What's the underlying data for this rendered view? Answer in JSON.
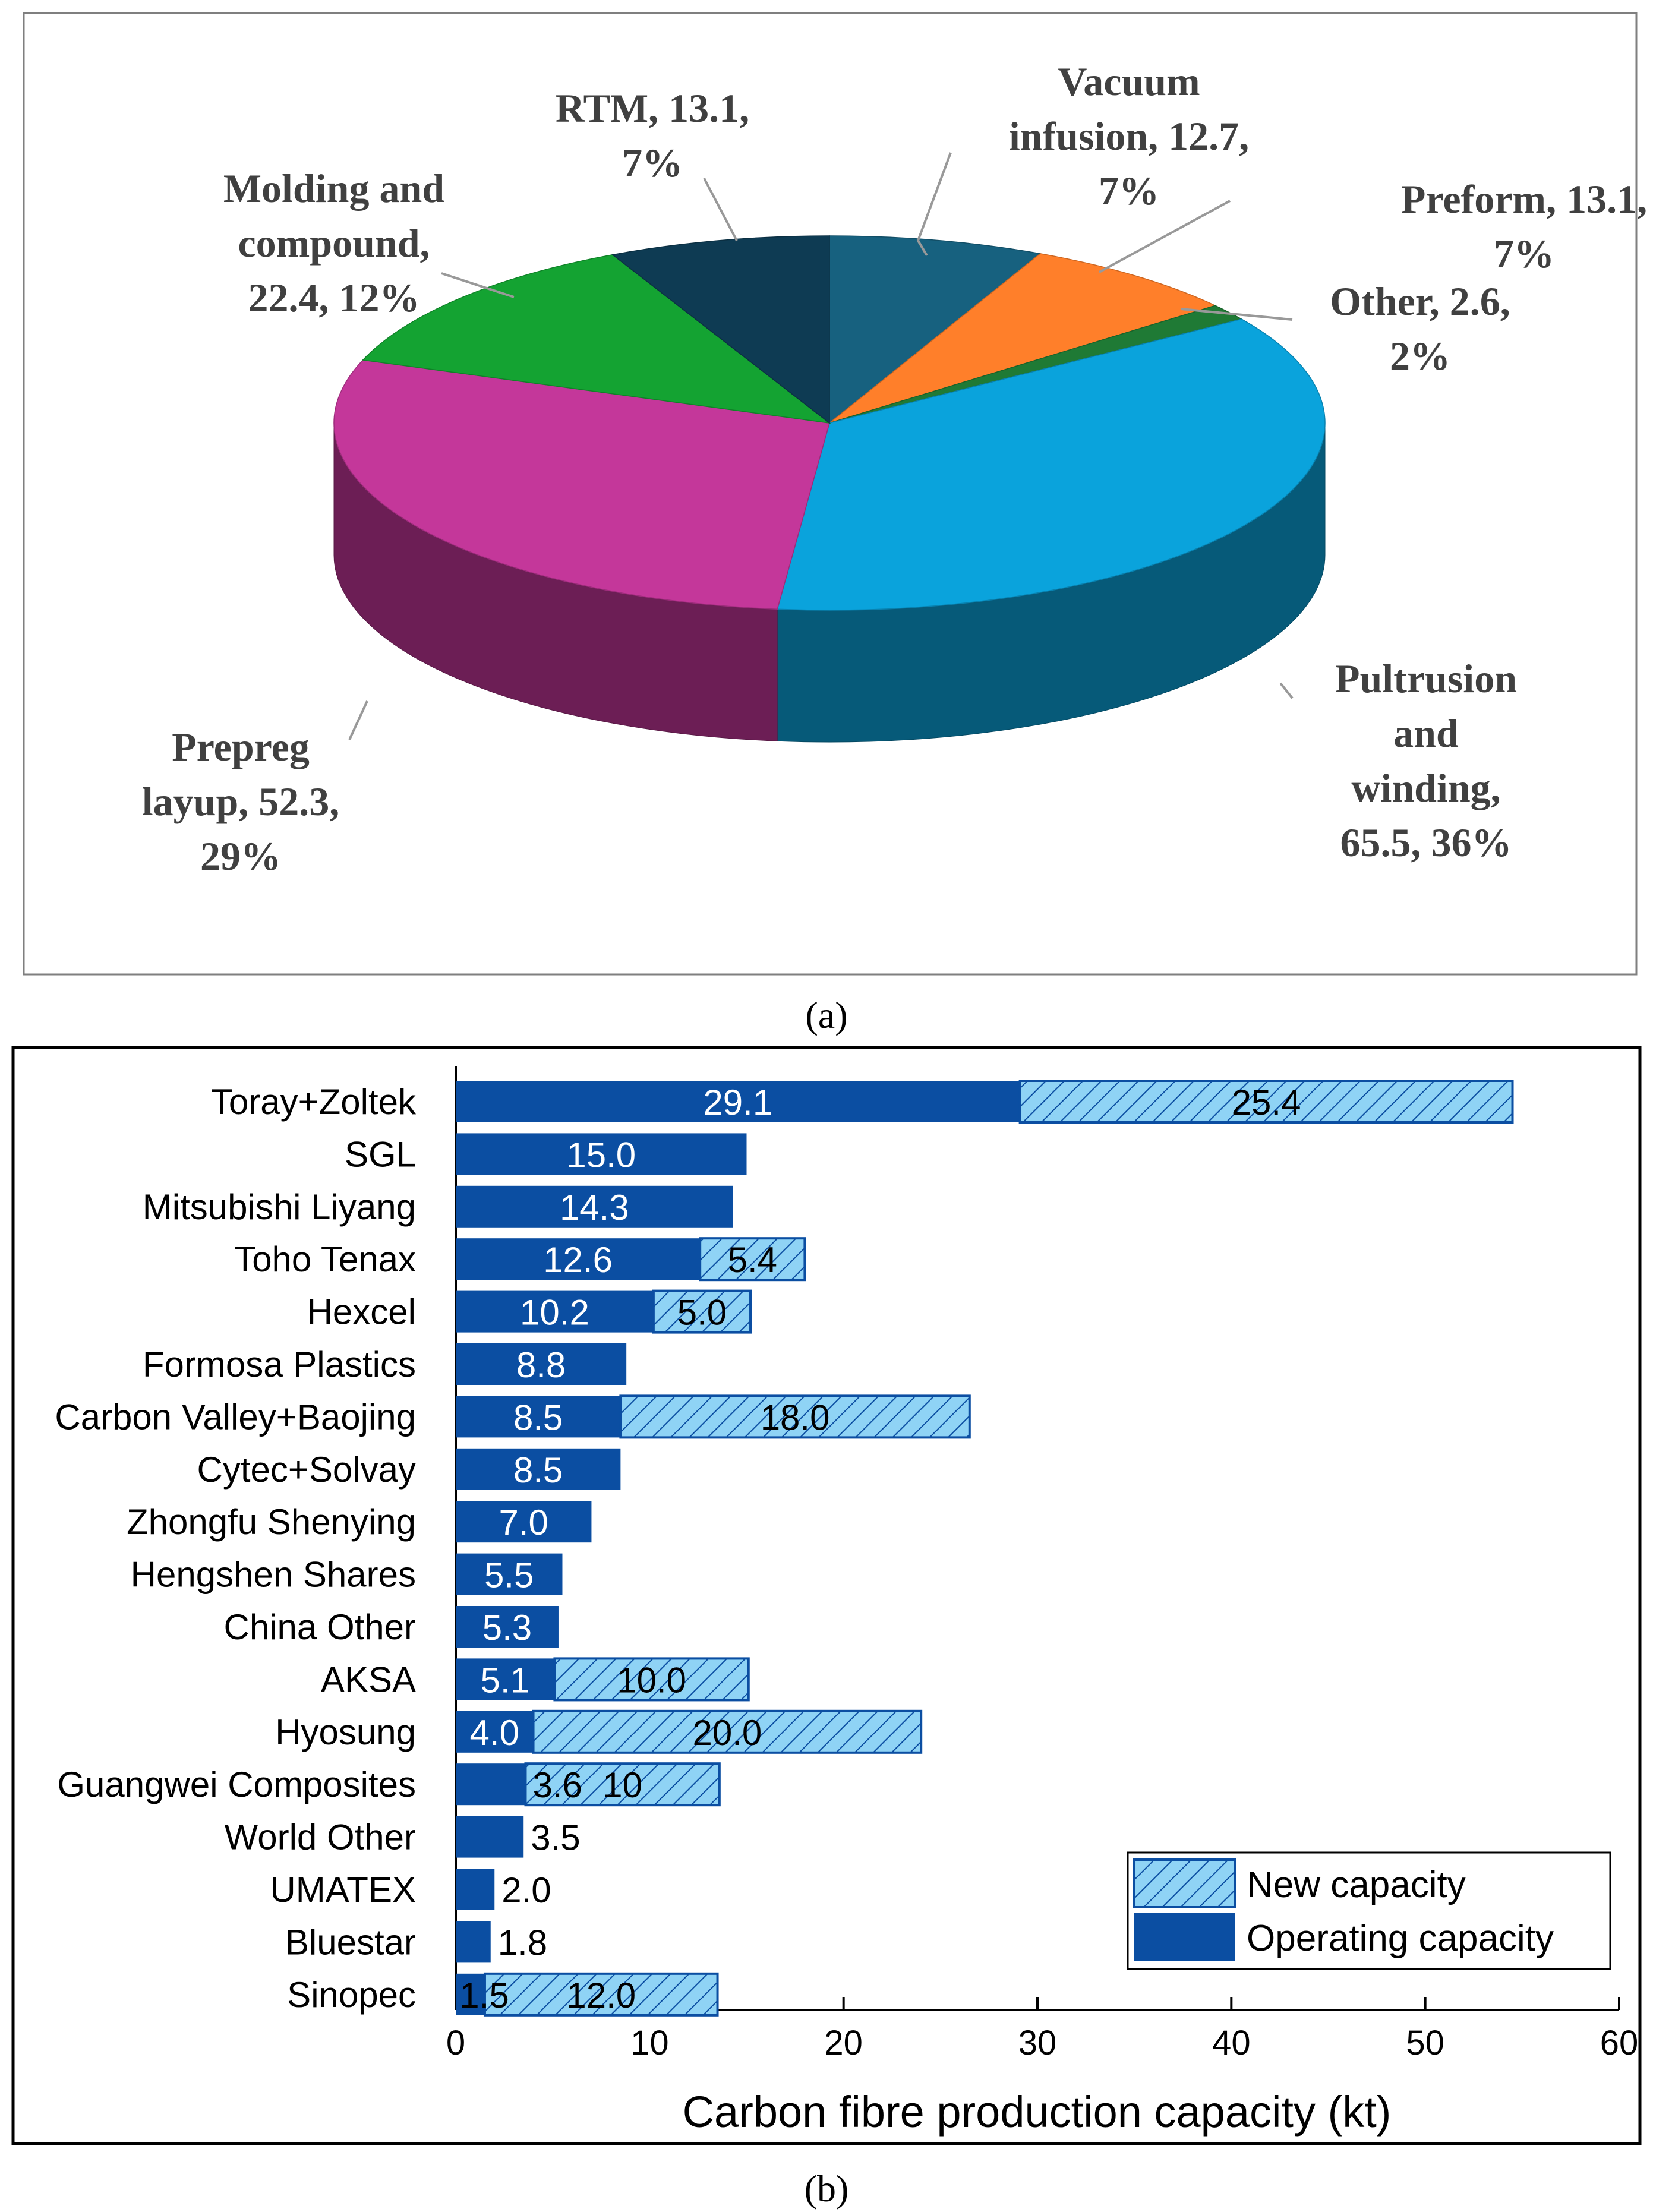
{
  "chart_data": [
    {
      "type": "pie",
      "panel_label": "(a)",
      "slices": [
        {
          "name": "Vacuum infusion",
          "value": 12.7,
          "percent": 7,
          "color": "#17617f",
          "label_lines": [
            "Vacuum",
            "infusion, 12.7,",
            "7%"
          ]
        },
        {
          "name": "Preform",
          "value": 13.1,
          "percent": 7,
          "color": "#ff7f2a",
          "label_lines": [
            "Preform, 13.1,",
            "7%"
          ]
        },
        {
          "name": "Other",
          "value": 2.6,
          "percent": 2,
          "color": "#1f7a35",
          "label_lines": [
            "Other, 2.6,",
            "2%"
          ]
        },
        {
          "name": "Pultrusion and winding",
          "value": 65.5,
          "percent": 36,
          "color": "#0aa3dc",
          "label_lines": [
            "Pultrusion",
            "and",
            "winding,",
            "65.5, 36%"
          ]
        },
        {
          "name": "Prepreg layup",
          "value": 52.3,
          "percent": 29,
          "color": "#c4379a",
          "label_lines": [
            "Prepreg",
            "layup, 52.3,",
            "29%"
          ]
        },
        {
          "name": "Molding and compound",
          "value": 22.4,
          "percent": 12,
          "color": "#14a332",
          "label_lines": [
            "Molding and",
            "compound,",
            "22.4, 12%"
          ]
        },
        {
          "name": "RTM",
          "value": 13.1,
          "percent": 7,
          "color": "#0e3b53",
          "label_lines": [
            "RTM, 13.1,",
            "7%"
          ]
        }
      ]
    },
    {
      "type": "bar",
      "orientation": "horizontal",
      "stacked": true,
      "panel_label": "(b)",
      "xlabel": "Carbon fibre production capacity (kt)",
      "xlim": [
        0,
        60
      ],
      "xticks": [
        "0",
        "10",
        "20",
        "30",
        "40",
        "50",
        "60"
      ],
      "categories": [
        "Toray+Zoltek",
        "SGL",
        "Mitsubishi Liyang",
        "Toho Tenax",
        "Hexcel",
        "Formosa Plastics",
        "Carbon Valley+Baojing",
        "Cytec+Solvay",
        "Zhongfu Shenying",
        "Hengshen Shares",
        "China Other",
        "AKSA",
        "Hyosung",
        "Guangwei Composites",
        "World Other",
        "UMATEX",
        "Bluestar",
        "Sinopec"
      ],
      "series": [
        {
          "name": "Operating capacity",
          "color": "#0b4ea2",
          "values": [
            29.1,
            15.0,
            14.3,
            12.6,
            10.2,
            8.8,
            8.5,
            8.5,
            7.0,
            5.5,
            5.3,
            5.1,
            4.0,
            3.6,
            3.5,
            2.0,
            1.8,
            1.5
          ],
          "value_labels": [
            "29.1",
            "15.0",
            "14.3",
            "12.6",
            "10.2",
            "8.8",
            "8.5",
            "8.5",
            "7.0",
            "5.5",
            "5.3",
            "5.1",
            "4.0",
            "3.6",
            "3.5",
            "2.0",
            "1.8",
            "1.5"
          ]
        },
        {
          "name": "New capacity",
          "color": "#8fd3f5",
          "values": [
            25.4,
            0,
            0,
            5.4,
            5.0,
            0,
            18.0,
            0,
            0,
            0,
            0,
            10.0,
            20.0,
            10,
            0,
            0,
            0,
            12.0
          ],
          "value_labels": [
            "25.4",
            "",
            "",
            "5.4",
            "5.0",
            "",
            "18.0",
            "",
            "",
            "",
            "",
            "10.0",
            "20.0",
            "10",
            "",
            "",
            "",
            "12.0"
          ]
        }
      ],
      "legend": {
        "position": "bottom-right",
        "entries": [
          "New capacity",
          "Operating capacity"
        ]
      }
    }
  ]
}
